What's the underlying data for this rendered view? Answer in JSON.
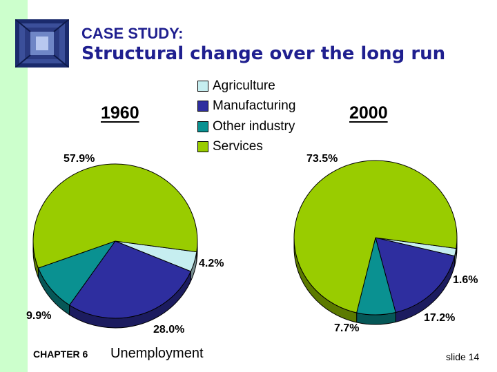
{
  "header": {
    "kicker": "CASE STUDY:",
    "title": "Structural change over the long run"
  },
  "legend": [
    {
      "label": "Agriculture",
      "color": "#c6eef0"
    },
    {
      "label": "Manufacturing",
      "color": "#2e2e9f"
    },
    {
      "label": "Other industry",
      "color": "#0a9191"
    },
    {
      "label": "Services",
      "color": "#99cc00"
    }
  ],
  "chart_data": [
    {
      "type": "pie",
      "title": "1960",
      "categories": [
        "Agriculture",
        "Manufacturing",
        "Other industry",
        "Services"
      ],
      "values": [
        4.2,
        28.0,
        9.9,
        57.9
      ],
      "labels": [
        "4.2%",
        "28.0%",
        "9.9%",
        "57.9%"
      ],
      "colors": [
        "#c6eef0",
        "#2e2e9f",
        "#0a9191",
        "#99cc00"
      ]
    },
    {
      "type": "pie",
      "title": "2000",
      "categories": [
        "Agriculture",
        "Manufacturing",
        "Other industry",
        "Services"
      ],
      "values": [
        1.6,
        17.2,
        7.7,
        73.5
      ],
      "labels": [
        "1.6%",
        "17.2%",
        "7.7%",
        "73.5%"
      ],
      "colors": [
        "#c6eef0",
        "#2e2e9f",
        "#0a9191",
        "#99cc00"
      ]
    }
  ],
  "footer": {
    "chapter": "CHAPTER 6",
    "topic": "Unemployment",
    "slide": "slide 14"
  }
}
